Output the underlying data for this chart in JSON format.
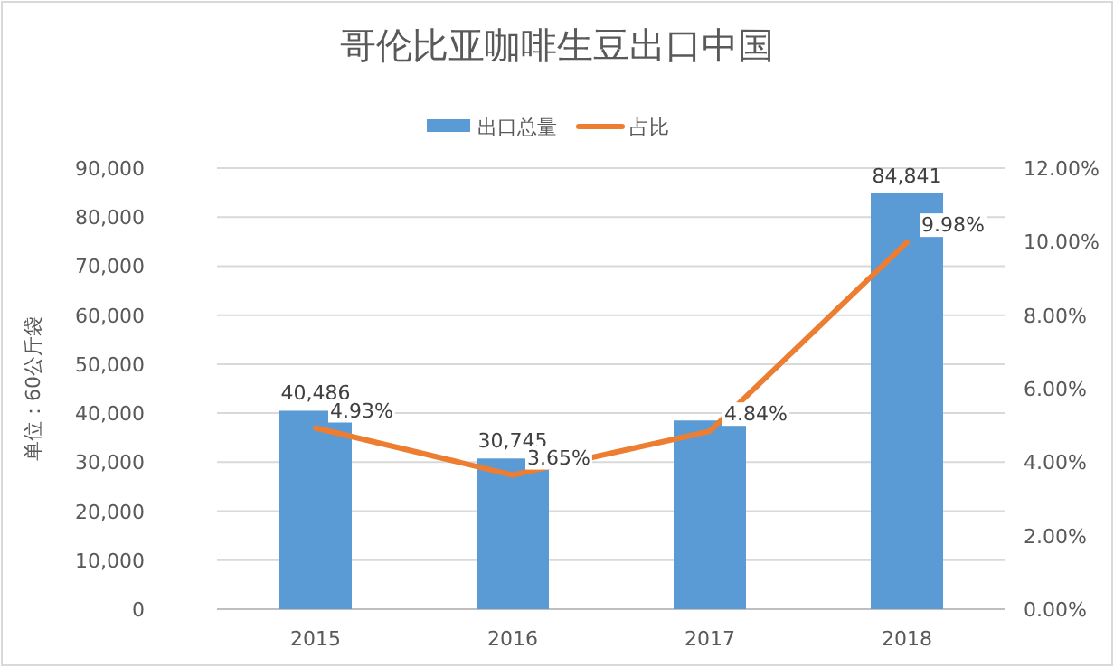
{
  "chart_data": {
    "type": "bar",
    "title": "哥伦比亚咖啡生豆出口中国",
    "ylabel": "单位：60公斤袋",
    "categories": [
      "2015",
      "2016",
      "2017",
      "2018"
    ],
    "series": [
      {
        "name": "出口总量",
        "color": "#5b9bd5",
        "values": [
          40486,
          30745,
          38500,
          84841
        ],
        "value_labels": [
          "40,486",
          "30,745",
          null,
          "84,841"
        ]
      },
      {
        "name": "占比",
        "type": "line",
        "axis": "y2",
        "color": "#ed7d31",
        "values": [
          4.93,
          3.65,
          4.84,
          9.98
        ],
        "value_labels": [
          "4.93%",
          "3.65%",
          "4.84%",
          "9.98%"
        ],
        "marker": "none"
      }
    ],
    "ylim": [
      0,
      90000
    ],
    "yticks": [
      {
        "value": 0,
        "label": "0"
      },
      {
        "value": 10000,
        "label": "10,000"
      },
      {
        "value": 20000,
        "label": "20,000"
      },
      {
        "value": 30000,
        "label": "30,000"
      },
      {
        "value": 40000,
        "label": "40,000"
      },
      {
        "value": 50000,
        "label": "50,000"
      },
      {
        "value": 60000,
        "label": "60,000"
      },
      {
        "value": 70000,
        "label": "70,000"
      },
      {
        "value": 80000,
        "label": "80,000"
      },
      {
        "value": 90000,
        "label": "90,000"
      }
    ],
    "y2lim": [
      0,
      12
    ],
    "y2ticks": [
      {
        "value": 0,
        "label": "0.00%"
      },
      {
        "value": 2,
        "label": "2.00%"
      },
      {
        "value": 4,
        "label": "4.00%"
      },
      {
        "value": 6,
        "label": "6.00%"
      },
      {
        "value": 8,
        "label": "8.00%"
      },
      {
        "value": 10,
        "label": "10.00%"
      },
      {
        "value": 12,
        "label": "12.00%"
      }
    ],
    "grid": "y",
    "legend": "top"
  }
}
